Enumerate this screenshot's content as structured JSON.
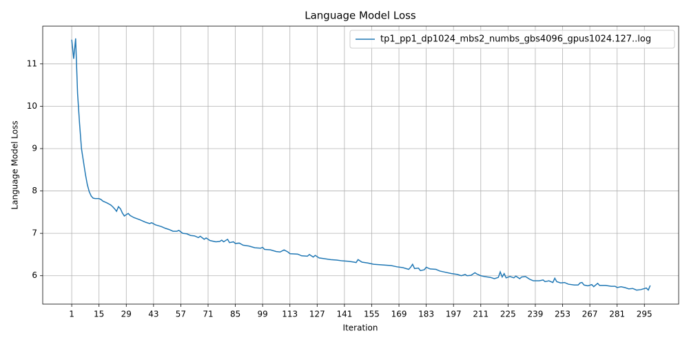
{
  "chart_data": {
    "type": "line",
    "title": "Language Model Loss",
    "xlabel": "Iteration",
    "ylabel": "Language Model Loss",
    "x": [
      1,
      2,
      3,
      4,
      5,
      6,
      7,
      8,
      9,
      10,
      11,
      12,
      13,
      15,
      16,
      17,
      19,
      21,
      22,
      23,
      24,
      25,
      26,
      27,
      28,
      29,
      30,
      31,
      33,
      36,
      39,
      41,
      42,
      44,
      47,
      49,
      51,
      53,
      55,
      56,
      58,
      60,
      62,
      64,
      66,
      67,
      69,
      70,
      72,
      75,
      77,
      78,
      79,
      81,
      82,
      84,
      85,
      87,
      89,
      92,
      95,
      98,
      99,
      100,
      103,
      106,
      108,
      110,
      112,
      113,
      117,
      119,
      122,
      123,
      125,
      126,
      128,
      131,
      134,
      137,
      140,
      143,
      146,
      147,
      148,
      150,
      153,
      156,
      159,
      162,
      165,
      168,
      171,
      174,
      175,
      176,
      177,
      179,
      180,
      182,
      183,
      185,
      188,
      190,
      193,
      196,
      199,
      201,
      203,
      204,
      206,
      208,
      209,
      211,
      213,
      216,
      218,
      220,
      221,
      222,
      223,
      224,
      226,
      228,
      229,
      231,
      232,
      234,
      236,
      238,
      241,
      243,
      244,
      246,
      248,
      249,
      250,
      252,
      254,
      256,
      259,
      261,
      262,
      263,
      264,
      266,
      268,
      269,
      271,
      272,
      275,
      278,
      280,
      281,
      283,
      285,
      287,
      289,
      291,
      293,
      296,
      297,
      298
    ],
    "series": [
      {
        "name": "tp1_pp1_dp1024_mbs2_numbs_gbs4096_gpus1024.127..log",
        "color": "#1f77b4",
        "values": [
          11.57,
          11.12,
          11.6,
          10.3,
          9.6,
          9.0,
          8.7,
          8.4,
          8.15,
          7.98,
          7.88,
          7.83,
          7.82,
          7.82,
          7.8,
          7.76,
          7.72,
          7.67,
          7.63,
          7.58,
          7.52,
          7.63,
          7.58,
          7.48,
          7.41,
          7.44,
          7.47,
          7.42,
          7.37,
          7.32,
          7.26,
          7.23,
          7.25,
          7.2,
          7.16,
          7.12,
          7.09,
          7.05,
          7.05,
          7.07,
          7.0,
          6.99,
          6.95,
          6.94,
          6.9,
          6.93,
          6.86,
          6.89,
          6.83,
          6.8,
          6.81,
          6.84,
          6.8,
          6.86,
          6.78,
          6.8,
          6.76,
          6.77,
          6.72,
          6.7,
          6.66,
          6.65,
          6.67,
          6.62,
          6.61,
          6.57,
          6.56,
          6.61,
          6.56,
          6.52,
          6.51,
          6.47,
          6.46,
          6.5,
          6.44,
          6.48,
          6.42,
          6.4,
          6.38,
          6.37,
          6.35,
          6.34,
          6.32,
          6.31,
          6.38,
          6.32,
          6.3,
          6.27,
          6.26,
          6.25,
          6.24,
          6.21,
          6.19,
          6.15,
          6.2,
          6.27,
          6.17,
          6.18,
          6.12,
          6.14,
          6.2,
          6.16,
          6.15,
          6.11,
          6.08,
          6.05,
          6.03,
          6.0,
          6.03,
          6.0,
          6.01,
          6.07,
          6.04,
          6.0,
          5.98,
          5.96,
          5.93,
          5.96,
          6.09,
          5.97,
          6.05,
          5.95,
          5.98,
          5.95,
          5.99,
          5.93,
          5.97,
          5.98,
          5.92,
          5.88,
          5.88,
          5.9,
          5.86,
          5.88,
          5.84,
          5.94,
          5.86,
          5.83,
          5.84,
          5.8,
          5.78,
          5.78,
          5.83,
          5.84,
          5.78,
          5.76,
          5.79,
          5.74,
          5.82,
          5.77,
          5.77,
          5.75,
          5.75,
          5.72,
          5.74,
          5.72,
          5.69,
          5.7,
          5.66,
          5.67,
          5.71,
          5.66,
          5.77
        ]
      }
    ],
    "xlim": [
      -13.9,
      312.6
    ],
    "ylim": [
      5.33,
      11.89
    ],
    "xticks": [
      1,
      15,
      29,
      43,
      57,
      71,
      85,
      99,
      113,
      127,
      141,
      155,
      169,
      183,
      197,
      211,
      225,
      239,
      253,
      267,
      281,
      295
    ],
    "yticks": [
      6,
      7,
      8,
      9,
      10,
      11
    ],
    "grid": true,
    "legend": "upper right"
  }
}
